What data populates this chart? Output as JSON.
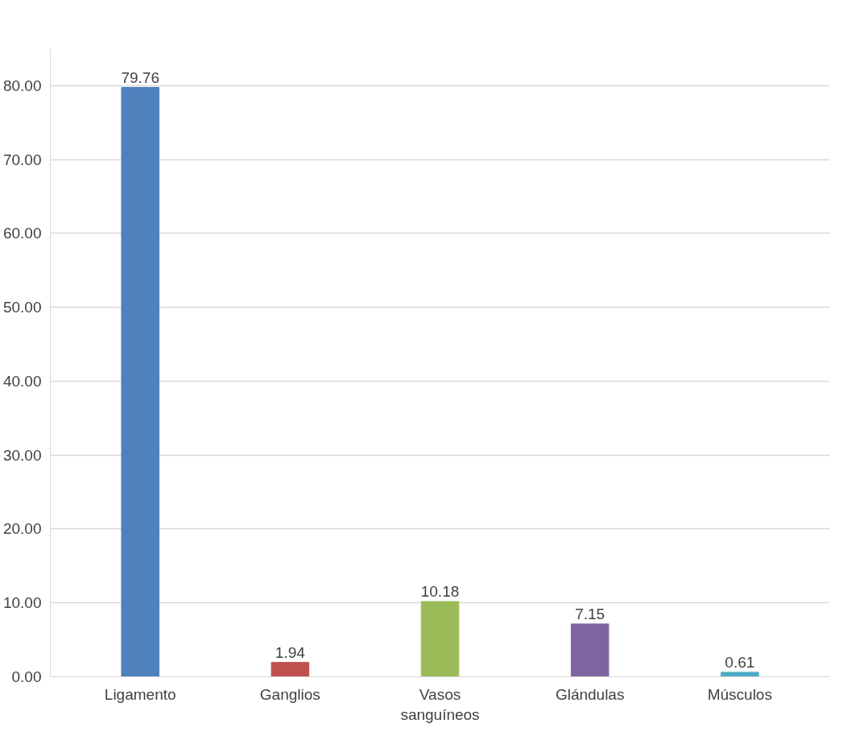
{
  "chart_data": {
    "type": "bar",
    "categories": [
      "Ligamento",
      "Ganglios",
      "Vasos sanguíneos",
      "Glándulas",
      "Músculos"
    ],
    "values": [
      79.76,
      1.94,
      10.18,
      7.15,
      0.61
    ],
    "colors": [
      "#4f81bd",
      "#c0504d",
      "#9bbb59",
      "#8064a2",
      "#4bacc6"
    ],
    "ylim": [
      0,
      85
    ],
    "yticks": [
      {
        "value": 0,
        "label": "0.00"
      },
      {
        "value": 10,
        "label": "10.00"
      },
      {
        "value": 20,
        "label": "20.00"
      },
      {
        "value": 30,
        "label": "30.00"
      },
      {
        "value": 40,
        "label": "40.00"
      },
      {
        "value": 50,
        "label": "50.00"
      },
      {
        "value": 60,
        "label": "60.00"
      },
      {
        "value": 70,
        "label": "70.00"
      },
      {
        "value": 80,
        "label": "80.00"
      }
    ],
    "grid": "y",
    "data_labels": true
  }
}
